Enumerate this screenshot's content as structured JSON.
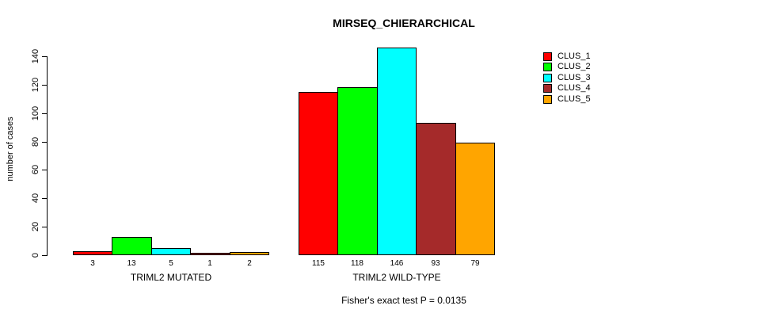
{
  "title": "MIRSEQ_CHIERARCHICAL",
  "footer": "Fisher's exact test P = 0.0135",
  "chart_data": {
    "type": "bar",
    "title": "MIRSEQ_CHIERARCHICAL",
    "xlabel": "",
    "ylabel": "number of cases",
    "ylim": [
      0,
      146
    ],
    "yticks": [
      0,
      20,
      40,
      60,
      80,
      100,
      120,
      140
    ],
    "grid": false,
    "categories": [
      "TRIML2 MUTATED",
      "TRIML2 WILD-TYPE"
    ],
    "groups": [
      {
        "label": "TRIML2 MUTATED",
        "values": [
          3,
          13,
          5,
          1,
          2
        ]
      },
      {
        "label": "TRIML2 WILD-TYPE",
        "values": [
          115,
          118,
          146,
          93,
          79
        ]
      }
    ],
    "series_colors": [
      "#FF0000",
      "#00FF00",
      "#00FFFF",
      "#A52A2A",
      "#FFA500"
    ],
    "legend_position": "right",
    "legend": [
      {
        "label": "CLUS_1",
        "color": "#FF0000"
      },
      {
        "label": "CLUS_2",
        "color": "#00FF00"
      },
      {
        "label": "CLUS_3",
        "color": "#00FFFF"
      },
      {
        "label": "CLUS_4",
        "color": "#A52A2A"
      },
      {
        "label": "CLUS_5",
        "color": "#FFA500"
      }
    ],
    "annotation": "Fisher's exact test P = 0.0135"
  }
}
